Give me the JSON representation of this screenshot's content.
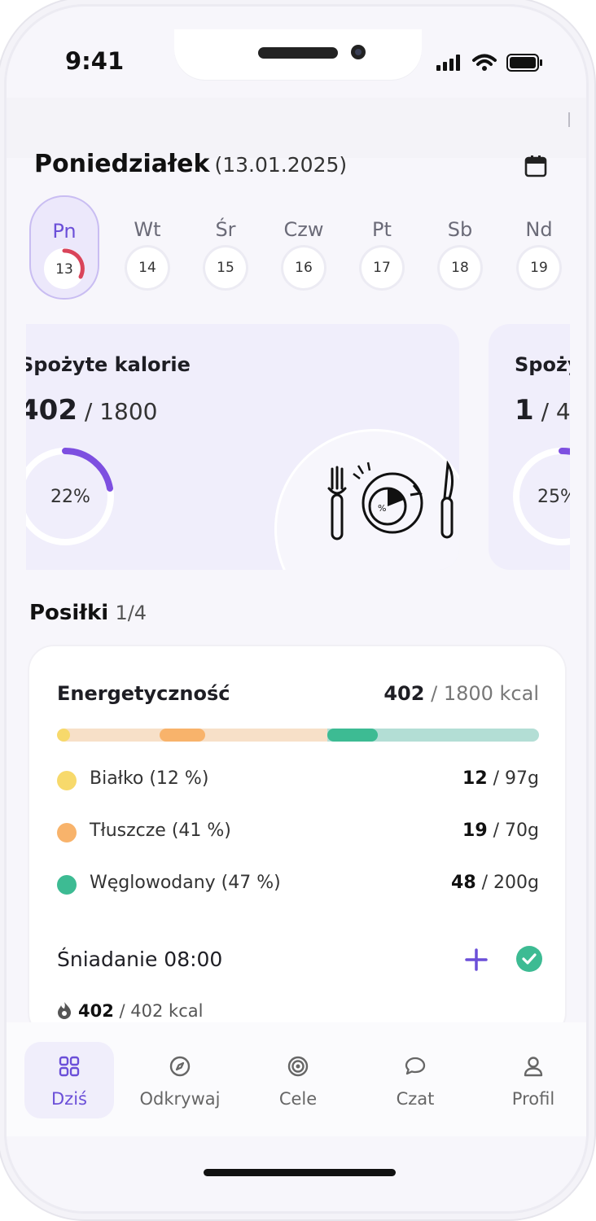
{
  "status": {
    "time": "9:41"
  },
  "header": {
    "day_name": "Poniedziałek",
    "date": "(13.01.2025)"
  },
  "week": [
    {
      "label": "Pn",
      "day": "13",
      "active": true
    },
    {
      "label": "Wt",
      "day": "14"
    },
    {
      "label": "Śr",
      "day": "15"
    },
    {
      "label": "Czw",
      "day": "16"
    },
    {
      "label": "Pt",
      "day": "17"
    },
    {
      "label": "Sb",
      "day": "18"
    },
    {
      "label": "Nd",
      "day": "19"
    }
  ],
  "cards": [
    {
      "title": "Spożyte kalorie",
      "value": "402",
      "goal": " / 1800",
      "percent": "22%"
    },
    {
      "title": "Spoży",
      "value": "1",
      "goal": " / 4",
      "percent": "25%"
    }
  ],
  "meals": {
    "title": "Posiłki",
    "count": "1/4"
  },
  "summary": {
    "energy_label": "Energetyczność",
    "energy_value": "402",
    "energy_goal": " / 1800 kcal",
    "macros": [
      {
        "name": "Białko (12 %)",
        "value": "12",
        "goal": " / 97g",
        "color": "#f7d96b"
      },
      {
        "name": "Tłuszcze (41 %)",
        "value": "19",
        "goal": " / 70g",
        "color": "#f8b36b"
      },
      {
        "name": "Węglowodany (47 %)",
        "value": "48",
        "goal": " / 200g",
        "color": "#3dbb93"
      }
    ]
  },
  "meal": {
    "title": "Śniadanie 08:00",
    "kcal": "402",
    "kcal_goal": " / 402 kcal"
  },
  "nav": [
    {
      "label": "Dziś",
      "icon": "grid-icon",
      "active": true
    },
    {
      "label": "Odkrywaj",
      "icon": "compass-icon"
    },
    {
      "label": "Cele",
      "icon": "target-icon"
    },
    {
      "label": "Czat",
      "icon": "chat-icon"
    },
    {
      "label": "Profil",
      "icon": "user-icon"
    }
  ],
  "colors": {
    "accent": "#6b4fd8",
    "progress_red": "#d9445a",
    "success": "#3dbb93"
  }
}
